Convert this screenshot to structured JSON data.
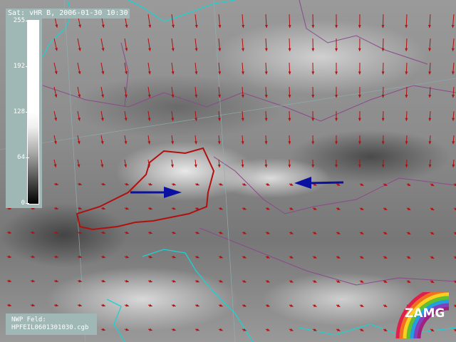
{
  "header": {
    "title": "Sat: vHR B, 2006-01-30 10:30"
  },
  "colorbar": {
    "ticks": [
      "255",
      "192",
      "128",
      "64",
      "0"
    ]
  },
  "footer": {
    "label": "NWP Feld:",
    "file": "HPFEIL0601301030.cgb"
  },
  "logo": {
    "text": "ZAMG"
  },
  "colors": {
    "wind_arrows": "#b01010",
    "borders": "#8a4a8a",
    "coastline": "#20d0d0",
    "highlight_region": "#b01010",
    "annotation_arrows": "#0a10a0",
    "panel": "#9fb8b5"
  },
  "icons": {
    "annotation_arrow_left": "arrow-right-icon",
    "annotation_arrow_right": "arrow-left-icon"
  }
}
